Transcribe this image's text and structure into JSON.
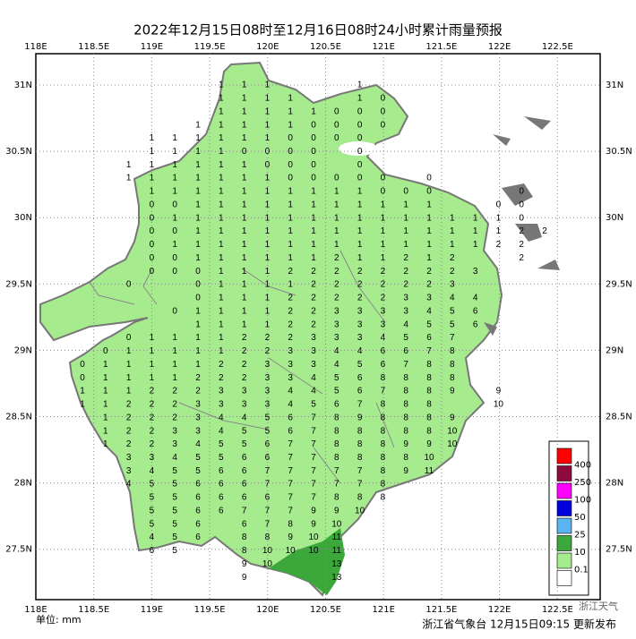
{
  "title": "2022年12月15日08时至12月16日08时24小时累计雨量预报",
  "lon_labels": [
    "118E",
    "118.5E",
    "119E",
    "119.5E",
    "120E",
    "120.5E",
    "121E",
    "121.5E",
    "122E",
    "122.5E"
  ],
  "lat_labels": [
    "31N",
    "30.5N",
    "30N",
    "29.5N",
    "29N",
    "28.5N",
    "28N",
    "27.5N"
  ],
  "grid": [
    [
      null,
      null,
      null,
      null,
      null,
      null,
      1,
      1,
      1,
      null,
      null,
      null,
      1,
      null,
      null,
      null,
      null,
      null,
      null,
      null,
      null
    ],
    [
      null,
      null,
      null,
      null,
      null,
      null,
      1,
      1,
      1,
      1,
      null,
      null,
      1,
      0,
      null,
      null,
      null,
      null,
      null,
      null,
      null
    ],
    [
      null,
      null,
      null,
      null,
      null,
      null,
      1,
      1,
      1,
      1,
      1,
      0,
      0,
      0,
      null,
      null,
      null,
      null,
      null,
      null,
      null
    ],
    [
      null,
      null,
      null,
      null,
      null,
      1,
      1,
      1,
      1,
      1,
      0,
      0,
      0,
      0,
      null,
      null,
      null,
      null,
      null,
      null,
      null
    ],
    [
      null,
      null,
      null,
      1,
      1,
      1,
      1,
      1,
      1,
      0,
      0,
      0,
      0,
      null,
      null,
      null,
      null,
      null,
      null,
      null,
      null
    ],
    [
      null,
      null,
      null,
      1,
      1,
      1,
      1,
      0,
      0,
      0,
      0,
      null,
      0,
      null,
      null,
      null,
      null,
      null,
      null,
      null,
      null
    ],
    [
      null,
      null,
      1,
      1,
      1,
      1,
      1,
      1,
      0,
      0,
      0,
      null,
      0,
      null,
      null,
      null,
      null,
      null,
      null,
      null,
      null
    ],
    [
      null,
      null,
      1,
      1,
      1,
      1,
      1,
      1,
      1,
      0,
      0,
      0,
      0,
      0,
      null,
      0,
      null,
      null,
      null,
      null,
      null
    ],
    [
      null,
      null,
      null,
      1,
      1,
      1,
      1,
      1,
      1,
      1,
      1,
      1,
      1,
      0,
      0,
      0,
      null,
      null,
      null,
      0,
      null
    ],
    [
      null,
      null,
      null,
      0,
      0,
      1,
      1,
      1,
      1,
      1,
      1,
      1,
      1,
      1,
      1,
      1,
      null,
      null,
      0,
      0,
      null
    ],
    [
      null,
      null,
      null,
      0,
      1,
      1,
      1,
      1,
      1,
      1,
      1,
      1,
      1,
      1,
      1,
      1,
      1,
      1,
      1,
      0,
      null
    ],
    [
      null,
      null,
      null,
      0,
      0,
      1,
      1,
      1,
      1,
      1,
      1,
      1,
      1,
      1,
      1,
      1,
      1,
      1,
      1,
      2,
      2
    ],
    [
      null,
      null,
      null,
      0,
      1,
      1,
      1,
      1,
      1,
      1,
      1,
      1,
      1,
      1,
      1,
      1,
      1,
      1,
      2,
      2,
      null
    ],
    [
      null,
      null,
      null,
      0,
      0,
      1,
      1,
      1,
      1,
      1,
      1,
      2,
      1,
      1,
      2,
      1,
      2,
      null,
      null,
      2,
      null
    ],
    [
      null,
      null,
      null,
      0,
      0,
      0,
      1,
      1,
      1,
      2,
      2,
      2,
      2,
      2,
      2,
      2,
      2,
      3,
      null,
      null,
      null
    ],
    [
      null,
      null,
      0,
      null,
      null,
      0,
      1,
      1,
      1,
      1,
      2,
      2,
      2,
      2,
      2,
      2,
      3,
      null,
      null,
      null,
      null
    ],
    [
      null,
      null,
      null,
      null,
      null,
      0,
      1,
      1,
      1,
      2,
      2,
      2,
      2,
      2,
      3,
      3,
      4,
      4,
      null,
      null,
      null
    ],
    [
      null,
      null,
      null,
      null,
      0,
      1,
      1,
      1,
      1,
      2,
      2,
      3,
      3,
      3,
      3,
      4,
      5,
      6,
      null,
      null,
      null
    ],
    [
      null,
      null,
      null,
      null,
      null,
      1,
      1,
      1,
      1,
      2,
      2,
      3,
      3,
      3,
      4,
      5,
      5,
      6,
      null,
      null,
      null
    ],
    [
      null,
      null,
      0,
      1,
      1,
      1,
      1,
      2,
      2,
      2,
      3,
      3,
      3,
      4,
      5,
      6,
      7,
      null,
      null,
      null,
      null
    ],
    [
      null,
      0,
      1,
      1,
      1,
      1,
      1,
      2,
      2,
      3,
      3,
      4,
      4,
      6,
      6,
      7,
      8,
      null,
      null,
      null,
      null
    ],
    [
      0,
      1,
      1,
      1,
      1,
      1,
      2,
      2,
      3,
      3,
      3,
      4,
      5,
      6,
      7,
      8,
      8,
      null,
      null,
      null,
      null
    ],
    [
      0,
      1,
      1,
      1,
      1,
      2,
      2,
      2,
      3,
      3,
      4,
      5,
      6,
      8,
      8,
      8,
      8,
      null,
      null,
      null,
      null
    ],
    [
      1,
      1,
      1,
      2,
      2,
      2,
      3,
      3,
      3,
      4,
      4,
      5,
      6,
      7,
      8,
      8,
      9,
      null,
      9,
      null,
      null
    ],
    [
      1,
      1,
      2,
      2,
      2,
      3,
      3,
      3,
      3,
      4,
      5,
      6,
      7,
      8,
      8,
      8,
      null,
      null,
      10,
      null,
      null
    ],
    [
      null,
      1,
      2,
      2,
      2,
      3,
      4,
      4,
      5,
      6,
      7,
      8,
      9,
      8,
      8,
      8,
      9,
      null,
      null,
      null,
      null
    ],
    [
      null,
      1,
      2,
      2,
      3,
      3,
      4,
      5,
      5,
      6,
      7,
      8,
      8,
      8,
      8,
      8,
      10,
      null,
      null,
      null,
      null
    ],
    [
      null,
      1,
      2,
      2,
      3,
      4,
      5,
      5,
      6,
      7,
      7,
      8,
      8,
      8,
      9,
      9,
      10,
      null,
      null,
      null,
      null
    ],
    [
      null,
      null,
      3,
      3,
      4,
      5,
      5,
      6,
      6,
      7,
      7,
      8,
      8,
      8,
      8,
      10,
      null,
      null,
      null,
      null,
      null
    ],
    [
      null,
      null,
      3,
      4,
      5,
      5,
      6,
      6,
      7,
      7,
      7,
      7,
      7,
      8,
      9,
      11,
      null,
      null,
      null,
      null,
      null
    ],
    [
      null,
      null,
      4,
      5,
      5,
      6,
      6,
      6,
      7,
      7,
      7,
      7,
      7,
      8,
      null,
      null,
      null,
      null,
      null,
      null,
      null
    ],
    [
      null,
      null,
      null,
      5,
      5,
      6,
      6,
      6,
      6,
      7,
      7,
      8,
      8,
      8,
      null,
      null,
      null,
      null,
      null,
      null,
      null
    ],
    [
      null,
      null,
      null,
      5,
      5,
      6,
      6,
      7,
      7,
      7,
      9,
      9,
      10,
      null,
      null,
      null,
      null,
      null,
      null,
      null,
      null
    ],
    [
      null,
      null,
      null,
      5,
      5,
      6,
      null,
      6,
      7,
      8,
      9,
      10,
      null,
      null,
      null,
      null,
      null,
      null,
      null,
      null,
      null
    ],
    [
      null,
      null,
      null,
      4,
      5,
      6,
      null,
      8,
      8,
      9,
      10,
      11,
      null,
      null,
      null,
      null,
      null,
      null,
      null,
      null,
      null
    ],
    [
      null,
      null,
      null,
      6,
      5,
      null,
      null,
      8,
      10,
      10,
      10,
      11,
      null,
      null,
      null,
      null,
      null,
      null,
      null,
      null,
      null
    ],
    [
      null,
      null,
      null,
      null,
      null,
      null,
      null,
      9,
      10,
      null,
      null,
      13,
      null,
      null,
      null,
      null,
      null,
      null,
      null,
      null,
      null
    ],
    [
      null,
      null,
      null,
      null,
      null,
      null,
      null,
      9,
      null,
      null,
      null,
      13,
      null,
      null,
      null,
      null,
      null,
      null,
      null,
      null,
      null
    ]
  ],
  "legend": {
    "colors": [
      "#ff0000",
      "#8c0a3c",
      "#ff00ff",
      "#0000dc",
      "#5ab4f0",
      "#3ca83c",
      "#a6ec8e",
      "#ffffff"
    ],
    "labels": [
      "400",
      "250",
      "100",
      "50",
      "25",
      "10",
      "0.1"
    ]
  },
  "unit": "单位: mm",
  "publisher": "浙江省气象台 12月15日09:15 更新发布",
  "watermark": "浙江天气"
}
